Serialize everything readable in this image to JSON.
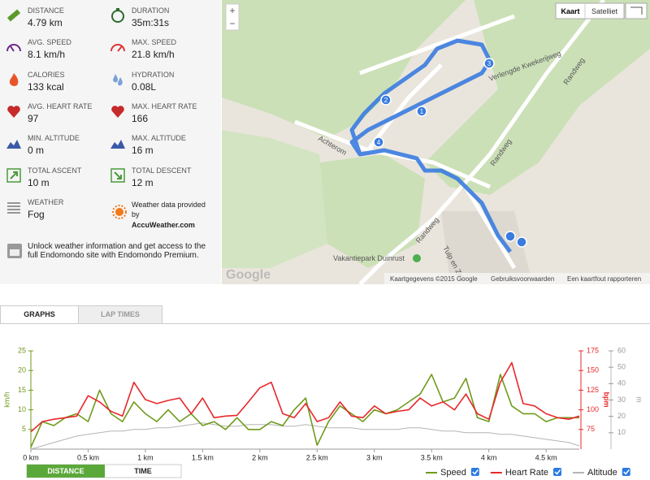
{
  "stats": [
    {
      "label": "DISTANCE",
      "value": "4.79 km"
    },
    {
      "label": "DURATION",
      "value": "35m:31s"
    },
    {
      "label": "AVG. SPEED",
      "value": "8.1 km/h"
    },
    {
      "label": "MAX. SPEED",
      "value": "21.8 km/h"
    },
    {
      "label": "CALORIES",
      "value": "133 kcal"
    },
    {
      "label": "HYDRATION",
      "value": "0.08L"
    },
    {
      "label": "AVG. HEART RATE",
      "value": "97"
    },
    {
      "label": "MAX. HEART RATE",
      "value": "166"
    },
    {
      "label": "MIN. ALTITUDE",
      "value": "0 m"
    },
    {
      "label": "MAX. ALTITUDE",
      "value": "16 m"
    },
    {
      "label": "TOTAL ASCENT",
      "value": "10 m"
    },
    {
      "label": "TOTAL DESCENT",
      "value": "12 m"
    },
    {
      "label": "WEATHER",
      "value": "Fog"
    }
  ],
  "weather_credit": {
    "text": "Weather data provided by",
    "brand": "AccuWeather.com"
  },
  "unlock": "Unlock weather information and get access to the full Endomondo site with Endomondo Premium.",
  "map": {
    "buttons": [
      "Kaart",
      "Satelliet"
    ],
    "zoom": [
      "+",
      "−"
    ],
    "labels": [
      "Verlengde Kwekerijweg",
      "Randweg",
      "Randweg",
      "Randweg",
      "Achterom",
      "Vakantiepark Duinrust",
      "Tulp en Zee"
    ],
    "markers": [
      "1",
      "2",
      "3",
      "4"
    ],
    "logo": "Google",
    "footer": [
      "Kaartgegevens ©2015 Google",
      "Gebruiksvoorwaarden",
      "Een kaartfout rapporteren"
    ]
  },
  "tabs": [
    "GRAPHS",
    "LAP TIMES"
  ],
  "chart_data": {
    "type": "line",
    "x": [
      0,
      0.1,
      0.2,
      0.3,
      0.4,
      0.5,
      0.6,
      0.7,
      0.8,
      0.9,
      1.0,
      1.1,
      1.2,
      1.3,
      1.4,
      1.5,
      1.6,
      1.7,
      1.8,
      1.9,
      2.0,
      2.1,
      2.2,
      2.3,
      2.4,
      2.5,
      2.6,
      2.7,
      2.8,
      2.9,
      3.0,
      3.1,
      3.2,
      3.3,
      3.4,
      3.5,
      3.6,
      3.7,
      3.8,
      3.9,
      4.0,
      4.1,
      4.2,
      4.3,
      4.4,
      4.5,
      4.6,
      4.7,
      4.79
    ],
    "xlim": [
      0,
      4.79
    ],
    "xticks": [
      {
        "value": 0,
        "label": "0 km"
      },
      {
        "value": 0.5,
        "label": "0.5 km"
      },
      {
        "value": 1,
        "label": "1 km"
      },
      {
        "value": 1.5,
        "label": "1.5 km"
      },
      {
        "value": 2,
        "label": "2 km"
      },
      {
        "value": 2.5,
        "label": "2.5 km"
      },
      {
        "value": 3,
        "label": "3 km"
      },
      {
        "value": 3.5,
        "label": "3.5 km"
      },
      {
        "value": 4,
        "label": "4 km"
      },
      {
        "value": 4.5,
        "label": "4.5 km"
      }
    ],
    "ylabel": "km/h",
    "ylim": [
      0,
      25
    ],
    "yticks": [
      5,
      10,
      15,
      20,
      25
    ],
    "y2label": "bpm",
    "y2lim": [
      50,
      175
    ],
    "y2ticks": [
      75,
      100,
      125,
      150,
      175
    ],
    "y3label": "m",
    "y3lim": [
      0,
      60
    ],
    "y3ticks": [
      10,
      20,
      30,
      40,
      50,
      60
    ],
    "series": [
      {
        "name": "Speed",
        "color": "#6f9a1a",
        "axis": "y",
        "values": [
          0.5,
          7,
          6,
          8,
          9,
          7,
          15,
          9,
          7,
          12,
          9,
          7,
          10,
          7,
          9,
          6,
          7,
          5,
          8,
          5,
          5,
          7,
          6,
          10,
          13,
          1,
          7,
          11,
          9,
          7,
          10,
          9,
          10,
          12,
          14,
          19,
          12,
          13,
          18,
          8,
          7,
          19,
          11,
          9,
          9,
          7,
          8,
          8,
          8
        ]
      },
      {
        "name": "Heart Rate",
        "color": "#e8282b",
        "axis": "y2",
        "values": [
          72,
          85,
          88,
          90,
          92,
          118,
          110,
          98,
          92,
          135,
          113,
          108,
          112,
          115,
          95,
          115,
          90,
          92,
          93,
          110,
          128,
          135,
          95,
          90,
          108,
          85,
          90,
          110,
          92,
          90,
          105,
          95,
          98,
          100,
          115,
          105,
          110,
          100,
          120,
          95,
          88,
          135,
          160,
          108,
          105,
          95,
          90,
          88,
          92
        ]
      },
      {
        "name": "Altitude",
        "color": "#b5b5b5",
        "axis": "y3",
        "values": [
          0,
          2,
          4,
          6,
          8,
          9,
          10,
          11,
          11,
          12,
          12,
          13,
          13,
          14,
          15,
          16,
          15,
          14,
          14,
          15,
          15,
          15,
          14,
          14,
          15,
          14,
          13,
          13,
          13,
          12,
          12,
          12,
          12,
          13,
          13,
          12,
          11,
          11,
          10,
          10,
          10,
          9,
          9,
          8,
          7,
          6,
          5,
          4,
          2
        ]
      }
    ],
    "toggle": [
      "DISTANCE",
      "TIME"
    ]
  }
}
